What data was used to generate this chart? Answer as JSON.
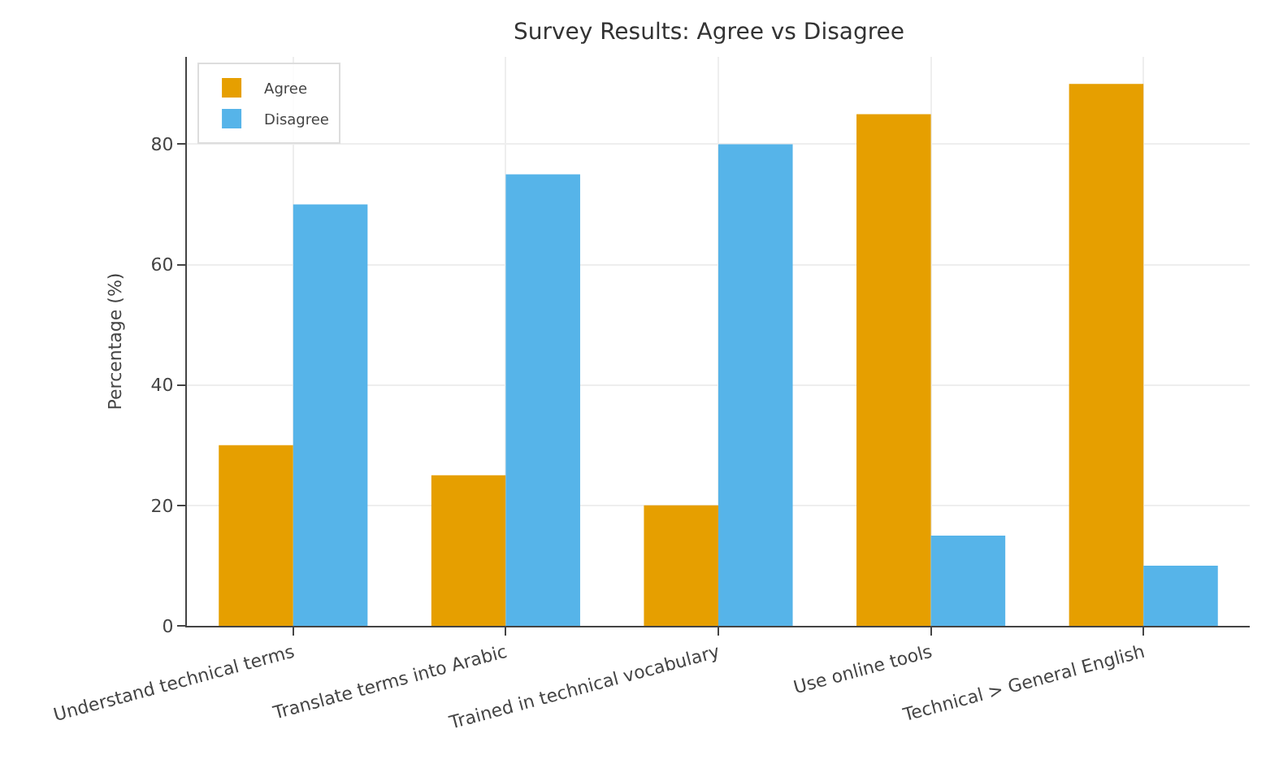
{
  "chart_data": {
    "type": "bar",
    "title": "Survey Results: Agree vs Disagree",
    "ylabel": "Percentage (%)",
    "categories": [
      "Understand technical terms",
      "Translate terms into Arabic",
      "Trained in technical vocabulary",
      "Use online tools",
      "Technical > General English"
    ],
    "series": [
      {
        "name": "Agree",
        "color": "#e69f00",
        "values": [
          30,
          25,
          20,
          85,
          90
        ]
      },
      {
        "name": "Disagree",
        "color": "#56b4e9",
        "values": [
          70,
          75,
          80,
          15,
          10
        ]
      }
    ],
    "ylim": [
      0,
      94.5
    ],
    "yticks": [
      0,
      20,
      40,
      60,
      80
    ],
    "grid": true,
    "legend": "top left"
  }
}
